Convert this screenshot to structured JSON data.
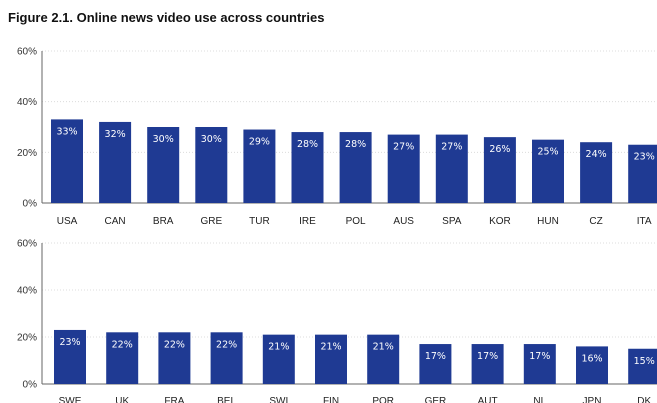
{
  "figure_title": "Figure 2.1. Online news video use across countries",
  "colors": {
    "bar": "#1f3a93",
    "grid": "#dcdcdc",
    "axis": "#666666"
  },
  "chart_data": [
    {
      "type": "bar",
      "title": "",
      "xlabel": "",
      "ylabel": "",
      "ylim": [
        0,
        60
      ],
      "yticks": [
        0,
        20,
        40,
        60
      ],
      "ytick_labels": [
        "0%",
        "20%",
        "40%",
        "60%"
      ],
      "grid": true,
      "categories": [
        "USA",
        "CAN",
        "BRA",
        "GRE",
        "TUR",
        "IRE",
        "POL",
        "AUS",
        "SPA",
        "KOR",
        "HUN",
        "CZ",
        "ITA"
      ],
      "values": [
        33,
        32,
        30,
        30,
        29,
        28,
        28,
        27,
        27,
        26,
        25,
        24,
        23
      ],
      "value_labels": [
        "33%",
        "32%",
        "30%",
        "30%",
        "29%",
        "28%",
        "28%",
        "27%",
        "27%",
        "26%",
        "25%",
        "24%",
        "23%"
      ]
    },
    {
      "type": "bar",
      "title": "",
      "xlabel": "",
      "ylabel": "",
      "ylim": [
        0,
        60
      ],
      "yticks": [
        0,
        20,
        40,
        60
      ],
      "ytick_labels": [
        "0%",
        "20%",
        "40%",
        "60%"
      ],
      "grid": true,
      "categories": [
        "SWE",
        "UK",
        "FRA",
        "BEL",
        "SWI",
        "FIN",
        "POR",
        "GER",
        "AUT",
        "NL",
        "JPN",
        "DK"
      ],
      "values": [
        23,
        22,
        22,
        22,
        21,
        21,
        21,
        17,
        17,
        17,
        16,
        15
      ],
      "value_labels": [
        "23%",
        "22%",
        "22%",
        "22%",
        "21%",
        "21%",
        "21%",
        "17%",
        "17%",
        "17%",
        "16%",
        "15%"
      ]
    }
  ]
}
